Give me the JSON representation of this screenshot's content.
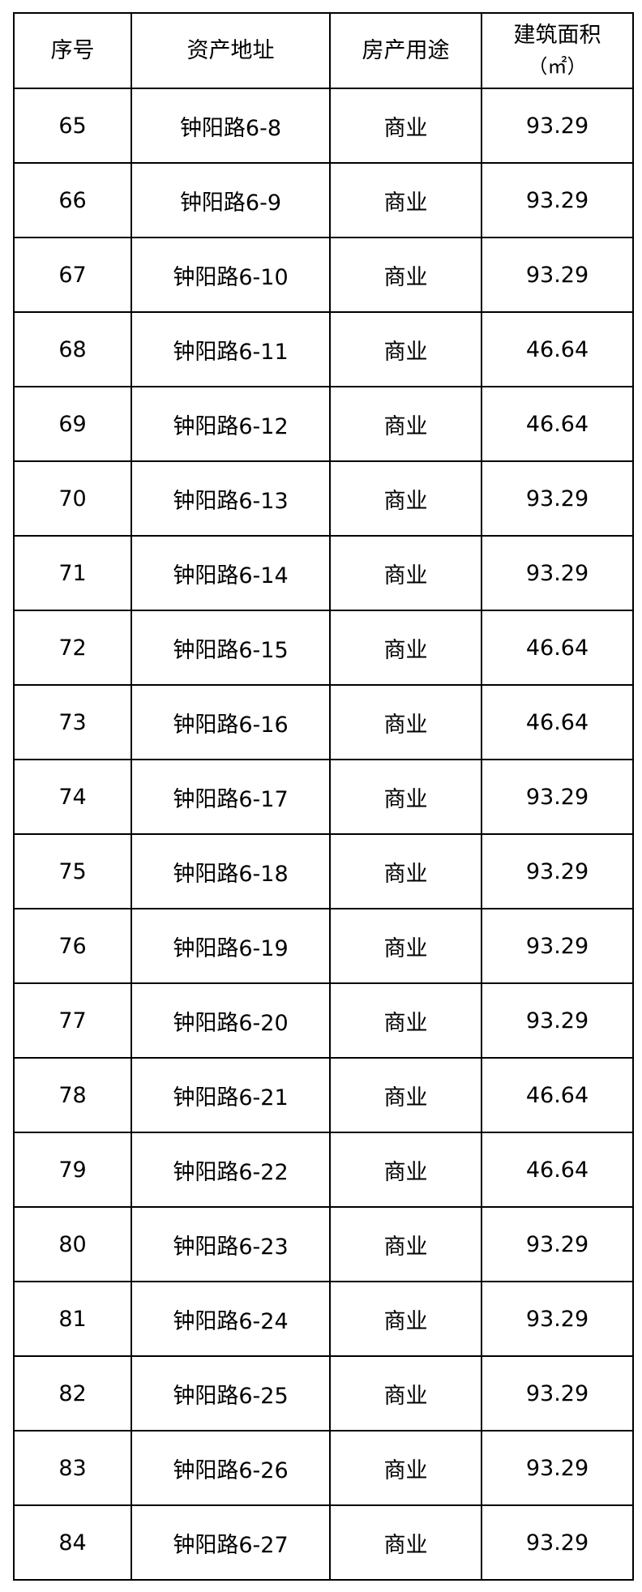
{
  "table": {
    "headers": [
      "序号",
      "资产地址",
      "房产用途",
      "建筑面积"
    ],
    "area_unit": "（㎡）",
    "rows": [
      {
        "no": "65",
        "address": "钟阳路6-8",
        "use": "商业",
        "area": "93.29"
      },
      {
        "no": "66",
        "address": "钟阳路6-9",
        "use": "商业",
        "area": "93.29"
      },
      {
        "no": "67",
        "address": "钟阳路6-10",
        "use": "商业",
        "area": "93.29"
      },
      {
        "no": "68",
        "address": "钟阳路6-11",
        "use": "商业",
        "area": "46.64"
      },
      {
        "no": "69",
        "address": "钟阳路6-12",
        "use": "商业",
        "area": "46.64"
      },
      {
        "no": "70",
        "address": "钟阳路6-13",
        "use": "商业",
        "area": "93.29"
      },
      {
        "no": "71",
        "address": "钟阳路6-14",
        "use": "商业",
        "area": "93.29"
      },
      {
        "no": "72",
        "address": "钟阳路6-15",
        "use": "商业",
        "area": "46.64"
      },
      {
        "no": "73",
        "address": "钟阳路6-16",
        "use": "商业",
        "area": "46.64"
      },
      {
        "no": "74",
        "address": "钟阳路6-17",
        "use": "商业",
        "area": "93.29"
      },
      {
        "no": "75",
        "address": "钟阳路6-18",
        "use": "商业",
        "area": "93.29"
      },
      {
        "no": "76",
        "address": "钟阳路6-19",
        "use": "商业",
        "area": "93.29"
      },
      {
        "no": "77",
        "address": "钟阳路6-20",
        "use": "商业",
        "area": "93.29"
      },
      {
        "no": "78",
        "address": "钟阳路6-21",
        "use": "商业",
        "area": "46.64"
      },
      {
        "no": "79",
        "address": "钟阳路6-22",
        "use": "商业",
        "area": "46.64"
      },
      {
        "no": "80",
        "address": "钟阳路6-23",
        "use": "商业",
        "area": "93.29"
      },
      {
        "no": "81",
        "address": "钟阳路6-24",
        "use": "商业",
        "area": "93.29"
      },
      {
        "no": "82",
        "address": "钟阳路6-25",
        "use": "商业",
        "area": "93.29"
      },
      {
        "no": "83",
        "address": "钟阳路6-26",
        "use": "商业",
        "area": "93.29"
      },
      {
        "no": "84",
        "address": "钟阳路6-27",
        "use": "商业",
        "area": "93.29"
      }
    ]
  }
}
